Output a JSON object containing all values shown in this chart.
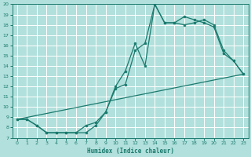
{
  "xlabel": "Humidex (Indice chaleur)",
  "bg_color": "#b2e0dc",
  "grid_color": "#ffffff",
  "line_color": "#1a7a6e",
  "xlim": [
    -0.5,
    23.5
  ],
  "ylim": [
    7,
    20
  ],
  "xticks": [
    0,
    1,
    2,
    3,
    4,
    5,
    6,
    7,
    8,
    9,
    10,
    11,
    12,
    13,
    14,
    15,
    16,
    17,
    18,
    19,
    20,
    21,
    22,
    23
  ],
  "yticks": [
    7,
    8,
    9,
    10,
    11,
    12,
    13,
    14,
    15,
    16,
    17,
    18,
    19,
    20
  ],
  "line1_x": [
    0,
    1,
    2,
    3,
    4,
    5,
    6,
    7,
    8,
    9,
    10,
    11,
    12,
    13,
    14,
    15,
    16,
    17,
    18,
    19,
    20,
    21,
    22,
    23
  ],
  "line1_y": [
    8.8,
    8.8,
    8.2,
    7.5,
    7.5,
    7.5,
    7.5,
    7.5,
    8.2,
    9.5,
    12.0,
    13.5,
    16.2,
    14.0,
    20.0,
    18.2,
    18.2,
    18.8,
    18.5,
    18.2,
    17.8,
    15.2,
    14.5,
    13.2
  ],
  "line2_x": [
    0,
    1,
    2,
    3,
    4,
    5,
    6,
    7,
    8,
    9,
    10,
    11,
    12,
    13,
    14,
    15,
    16,
    17,
    18,
    19,
    20,
    21,
    22,
    23
  ],
  "line2_y": [
    8.8,
    8.8,
    8.2,
    7.5,
    7.5,
    7.5,
    7.5,
    8.2,
    8.5,
    9.5,
    11.8,
    12.2,
    15.5,
    16.2,
    20.0,
    18.2,
    18.2,
    18.0,
    18.2,
    18.5,
    18.0,
    15.5,
    14.5,
    13.2
  ],
  "line3_x": [
    0,
    23
  ],
  "line3_y": [
    8.8,
    13.2
  ]
}
